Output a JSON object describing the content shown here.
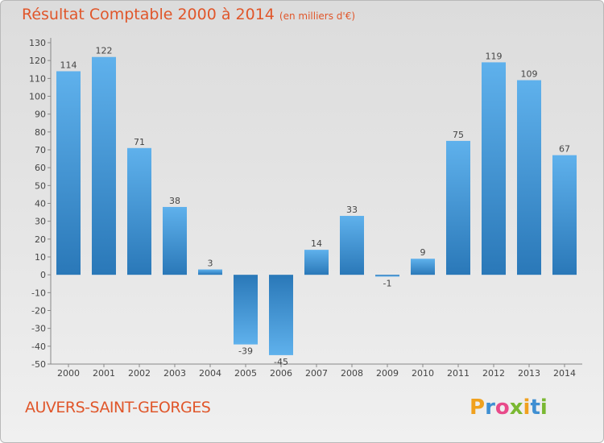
{
  "title": "Résultat Comptable 2000 à 2014",
  "unit_label": "(en milliers d'€)",
  "commune": "AUVERS-SAINT-GEORGES",
  "logo": {
    "letters": [
      "P",
      "r",
      "o",
      "x",
      "i",
      "t",
      "i"
    ],
    "colors": [
      "#f0a11e",
      "#3f8fd2",
      "#e84a8a",
      "#7ab832",
      "#f0a11e",
      "#3f8fd2",
      "#7ab832"
    ]
  },
  "colors": {
    "bar_light": "#5fb1ec",
    "bar_dark": "#2a78b8",
    "title": "#e0562a"
  },
  "chart_data": {
    "type": "bar",
    "title": "Résultat Comptable 2000 à 2014",
    "xlabel": "",
    "ylabel": "(en milliers d'€)",
    "ylim": [
      -50,
      130
    ],
    "ytick_step": 10,
    "categories": [
      "2000",
      "2001",
      "2002",
      "2003",
      "2004",
      "2005",
      "2006",
      "2007",
      "2008",
      "2009",
      "2010",
      "2011",
      "2012",
      "2013",
      "2014"
    ],
    "values": [
      114,
      122,
      71,
      38,
      3,
      -39,
      -45,
      14,
      33,
      -1,
      9,
      75,
      119,
      109,
      67
    ],
    "grid": false
  }
}
